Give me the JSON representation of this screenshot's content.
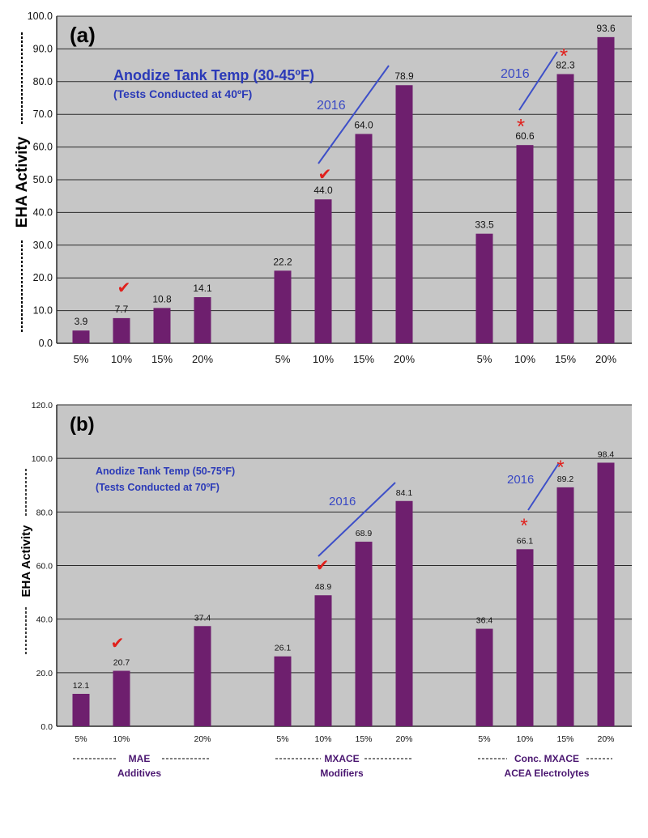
{
  "chart_data": [
    {
      "type": "bar",
      "panel_label": "(a)",
      "ylabel": "EHA Activity",
      "ylim": [
        0,
        100
      ],
      "yticks": [
        "0.0",
        "10.0",
        "20.0",
        "30.0",
        "40.0",
        "50.0",
        "60.0",
        "70.0",
        "80.0",
        "90.0",
        "100.0"
      ],
      "groups": [
        {
          "name": "MAE Additives",
          "categories": [
            "5%",
            "10%",
            "15%",
            "20%"
          ],
          "values": [
            3.9,
            7.7,
            10.8,
            14.1
          ],
          "labels": [
            "3.9",
            "7.7",
            "10.8",
            "14.1"
          ]
        },
        {
          "name": "MXACE Modifiers",
          "categories": [
            "5%",
            "10%",
            "15%",
            "20%"
          ],
          "values": [
            22.2,
            44.0,
            64.0,
            78.9
          ],
          "labels": [
            "22.2",
            "44.0",
            "64.0",
            "78.9"
          ]
        },
        {
          "name": "Conc. MXACE ACEA Electrolytes",
          "categories": [
            "5%",
            "10%",
            "15%",
            "20%"
          ],
          "values": [
            33.5,
            60.6,
            82.3,
            93.6
          ],
          "labels": [
            "33.5",
            "60.6",
            "82.3",
            "93.6"
          ]
        }
      ],
      "annotations": {
        "title_line1": "Anodize Tank Temp (30-45ºF)",
        "title_line2": "(Tests Conducted at 40ºF)",
        "year_labels": [
          "2016",
          "2016"
        ],
        "checkmark": "✔",
        "asterisk": "*"
      }
    },
    {
      "type": "bar",
      "panel_label": "(b)",
      "ylabel": "EHA Activity",
      "ylim": [
        0,
        120
      ],
      "yticks": [
        "0.0",
        "20.0",
        "40.0",
        "60.0",
        "80.0",
        "100.0",
        "120.0"
      ],
      "groups": [
        {
          "name": "MAE Additives",
          "categories": [
            "5%",
            "10%",
            "",
            "20%"
          ],
          "values": [
            12.1,
            20.7,
            null,
            37.4
          ],
          "labels": [
            "12.1",
            "20.7",
            "",
            "37.4"
          ]
        },
        {
          "name": "MXACE Modifiers",
          "categories": [
            "5%",
            "10%",
            "15%",
            "20%"
          ],
          "values": [
            26.1,
            48.9,
            68.9,
            84.1
          ],
          "labels": [
            "26.1",
            "48.9",
            "68.9",
            "84.1"
          ]
        },
        {
          "name": "Conc. MXACE ACEA Electrolytes",
          "categories": [
            "5%",
            "10%",
            "15%",
            "20%"
          ],
          "values": [
            36.4,
            66.1,
            89.2,
            98.4
          ],
          "labels": [
            "36.4",
            "66.1",
            "89.2",
            "98.4"
          ]
        }
      ],
      "group_labels": [
        {
          "line1": "MAE",
          "line2": "Additives"
        },
        {
          "line1": "MXACE",
          "line2": "Modifiers"
        },
        {
          "line1": "Conc. MXACE",
          "line2": "ACEA Electrolytes"
        }
      ],
      "annotations": {
        "title_line1": "Anodize Tank Temp (50-75ºF)",
        "title_line2": "(Tests Conducted at 70ºF)",
        "year_labels": [
          "2016",
          "2016"
        ],
        "checkmark": "✔",
        "asterisk": "*"
      }
    }
  ],
  "colors": {
    "bar": "#6e1f6e",
    "plot_bg": "#c6c6c6",
    "grid": "#2a2a2a",
    "blue": "#2b3ab8",
    "red": "#e0201c"
  }
}
